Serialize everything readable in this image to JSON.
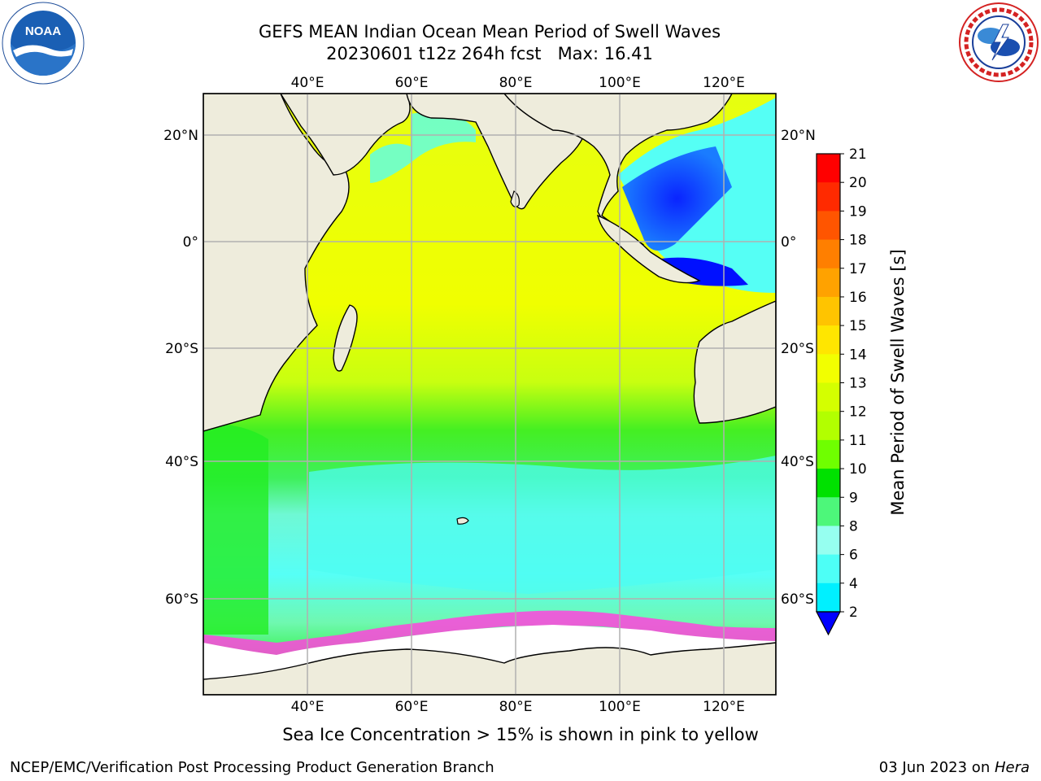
{
  "title": {
    "line1": "GEFS MEAN Indian Ocean Mean Period of Swell Waves",
    "line2": "20230601 t12z 264h fcst   Max: 16.41"
  },
  "caption": "Sea Ice Concentration > 15% is shown in pink to yellow",
  "footer": {
    "left": "NCEP/EMC/Verification Post Processing Product Generation Branch",
    "right_prefix": "03 Jun 2023 on ",
    "right_host": "Hera"
  },
  "logos": {
    "noaa_text": "NOAA",
    "noaa_ring_text": "NATIONAL OCEANIC AND ATMOSPHERIC ADMINISTRATION · U.S. DEPARTMENT OF COMMERCE",
    "nws_ring_text": "NATIONAL WEATHER SERVICE"
  },
  "map": {
    "lon_range": [
      20,
      130
    ],
    "lat_range": [
      -71,
      26
    ],
    "lon_ticks": [
      "40°E",
      "60°E",
      "80°E",
      "100°E",
      "120°E"
    ],
    "lat_ticks": [
      "20°N",
      "0°",
      "20°S",
      "40°S",
      "60°S"
    ],
    "gridlines": true,
    "land_color": "#eeecdc",
    "ice_color": "#ffffff"
  },
  "colorbar": {
    "label": "Mean Period of Swell Waves [s]",
    "ticks": [
      "21",
      "20",
      "19",
      "18",
      "17",
      "16",
      "15",
      "14",
      "13",
      "12",
      "11",
      "10",
      "9",
      "8",
      "6",
      "4",
      "2"
    ],
    "colors": [
      "#ff0000",
      "#ff2a00",
      "#ff5500",
      "#ff7f00",
      "#ffa200",
      "#ffc400",
      "#ffe600",
      "#f2ff00",
      "#d4ff00",
      "#b2ff00",
      "#6fff00",
      "#00e100",
      "#4df77a",
      "#96fff0",
      "#4dfff6",
      "#00f0ff",
      "#0094ff"
    ],
    "extend_color": "#0000ff",
    "extend": "min"
  }
}
